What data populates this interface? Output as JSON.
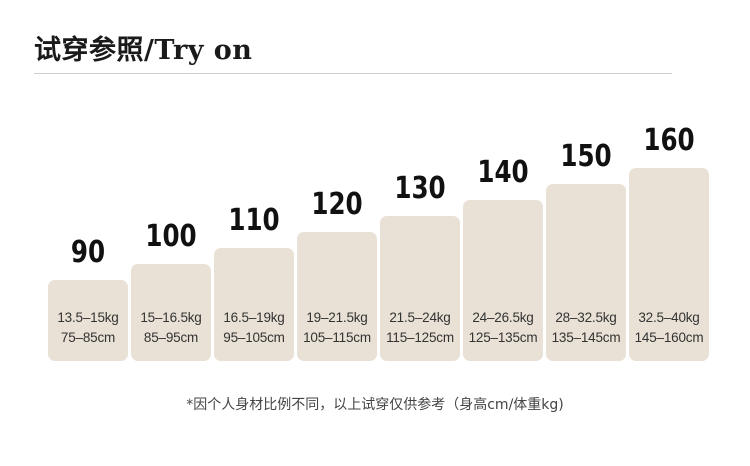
{
  "header": {
    "title": "试穿参照/Try on"
  },
  "sizes": [
    {
      "size": "90",
      "weight": "13.5–15kg",
      "height": "75–85cm"
    },
    {
      "size": "100",
      "weight": "15–16.5kg",
      "height": "85–95cm"
    },
    {
      "size": "110",
      "weight": "16.5–19kg",
      "height": "95–105cm"
    },
    {
      "size": "120",
      "weight": "19–21.5kg",
      "height": "105–115cm"
    },
    {
      "size": "130",
      "weight": "21.5–24kg",
      "height": "115–125cm"
    },
    {
      "size": "140",
      "weight": "24–26.5kg",
      "height": "125–135cm"
    },
    {
      "size": "150",
      "weight": "28–32.5kg",
      "height": "135–145cm"
    },
    {
      "size": "160",
      "weight": "32.5–40kg",
      "height": "145–160cm"
    }
  ],
  "footer": {
    "note": "*因个人身材比例不同，以上试穿仅供参考（身高cm/体重kg)"
  },
  "colors": {
    "box_fill": "#e9e1d5",
    "divider": "#cfcfcf"
  }
}
